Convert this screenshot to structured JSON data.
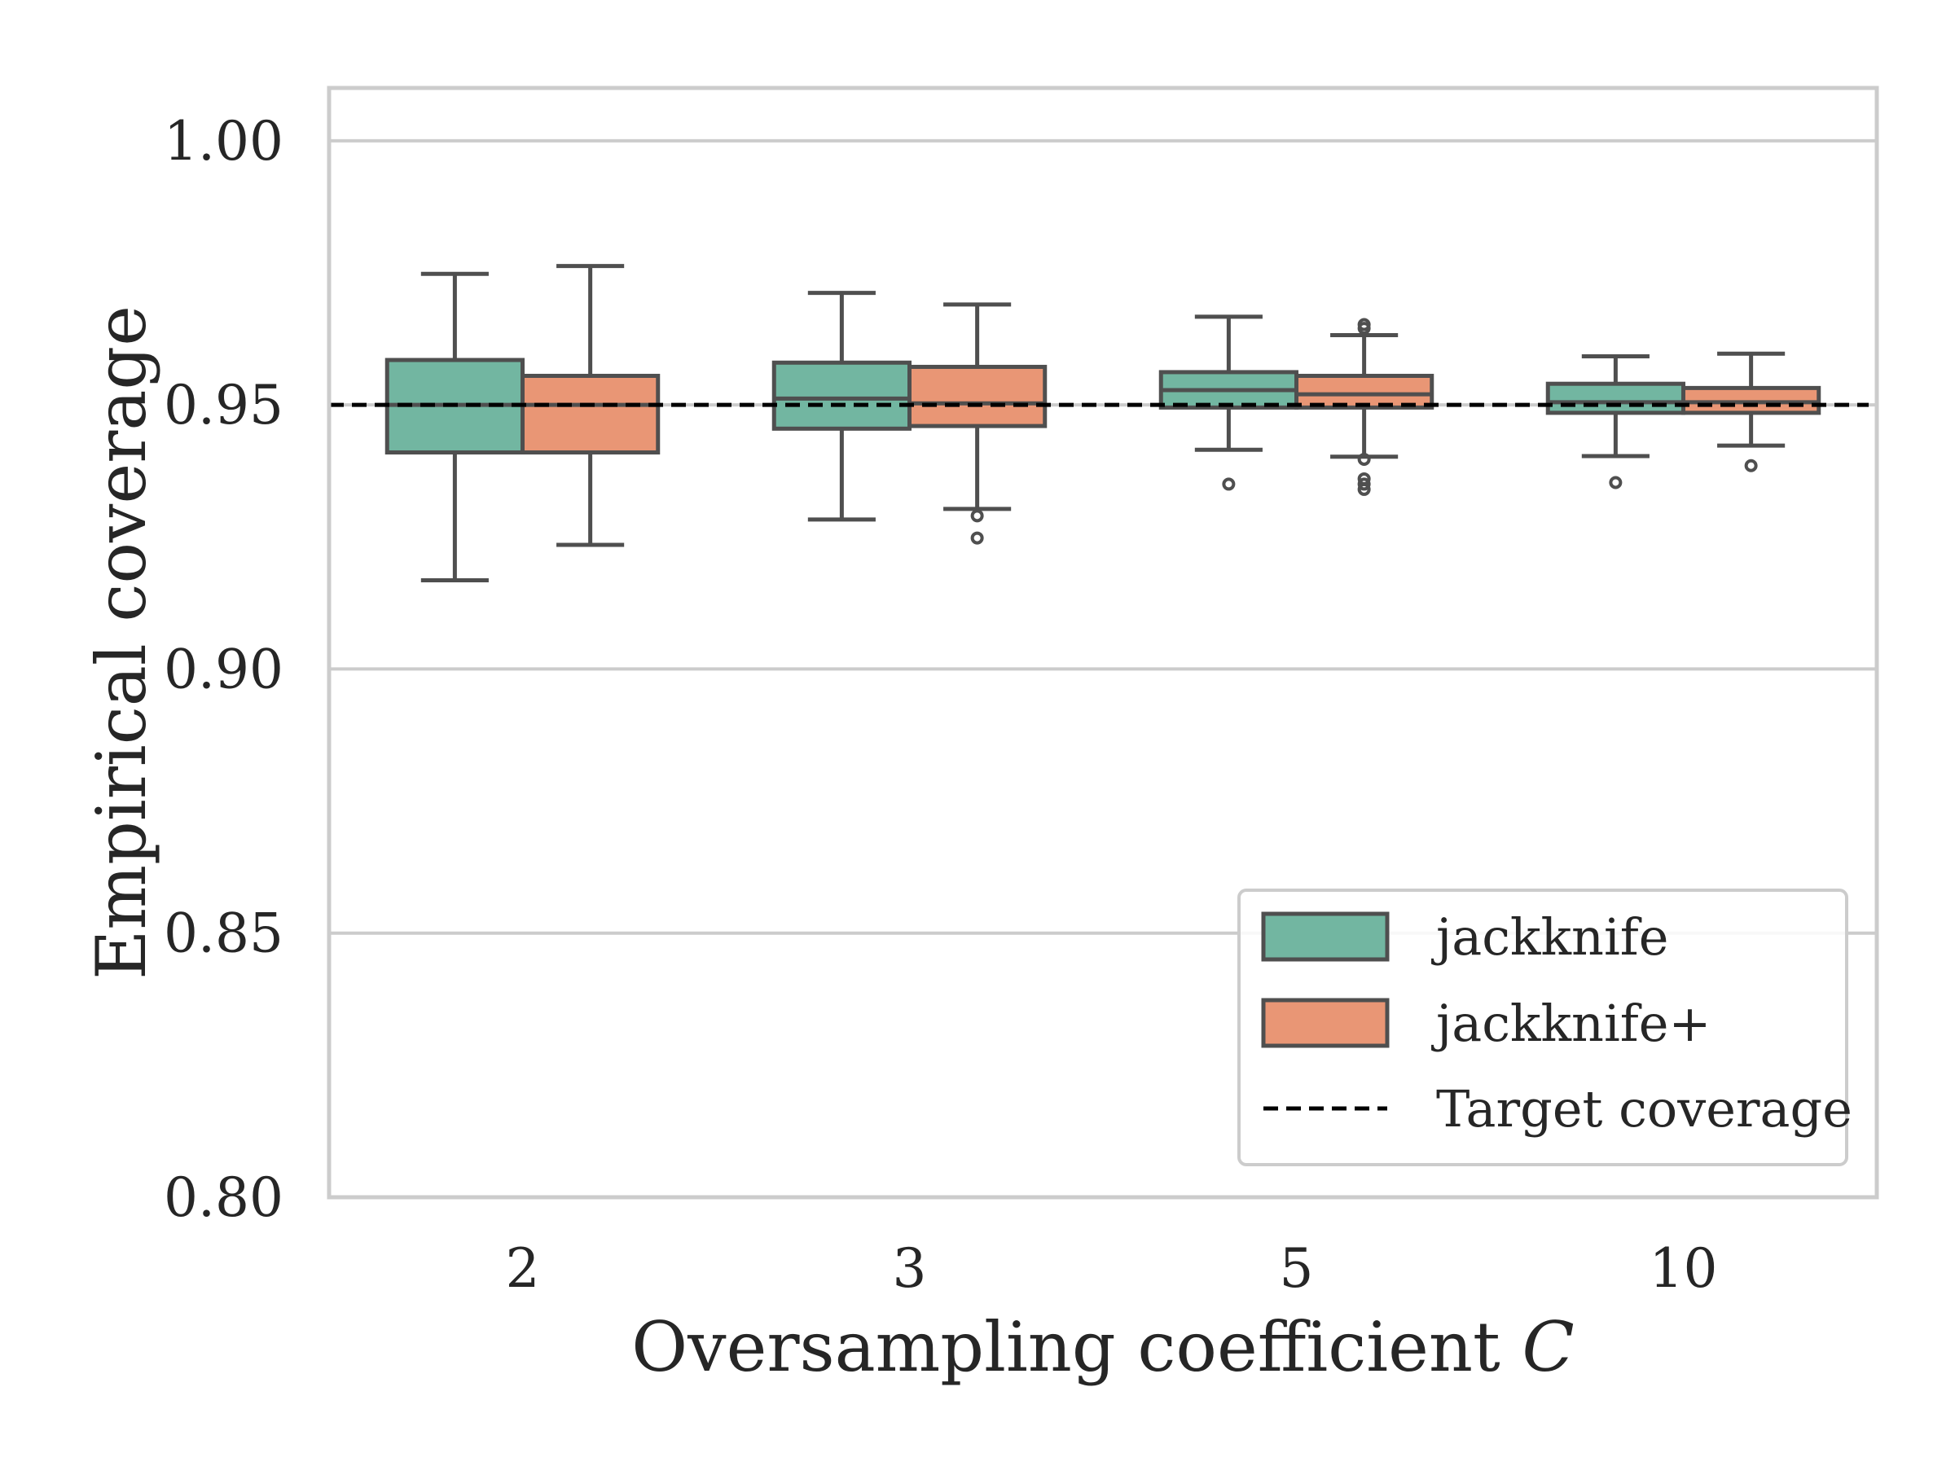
{
  "chart_data": {
    "type": "box",
    "title": "",
    "xlabel": "Oversampling coefficient",
    "xlabel_var": "C",
    "ylabel": "Empirical coverage",
    "ylim": [
      0.8,
      1.01
    ],
    "yticks": [
      0.8,
      0.85,
      0.9,
      0.95,
      1.0
    ],
    "ytick_labels": [
      "0.80",
      "0.85",
      "0.90",
      "0.95",
      "1.00"
    ],
    "categories": [
      "2",
      "3",
      "5",
      "10"
    ],
    "grid": "horizontal",
    "legend_position": "bottom-right",
    "target": {
      "name": "Target coverage",
      "value": 0.95,
      "color": "#000000"
    },
    "series": [
      {
        "name": "jackknife",
        "color": "#72b6a1",
        "boxes": [
          {
            "q1": 0.941,
            "median": 0.95,
            "q3": 0.9585,
            "whislo": 0.9168,
            "whishi": 0.9748,
            "fliers": []
          },
          {
            "q1": 0.9455,
            "median": 0.9512,
            "q3": 0.958,
            "whislo": 0.9283,
            "whishi": 0.9712,
            "fliers": []
          },
          {
            "q1": 0.9495,
            "median": 0.9528,
            "q3": 0.9562,
            "whislo": 0.9415,
            "whishi": 0.9667,
            "fliers": [
              0.935
            ]
          },
          {
            "q1": 0.9485,
            "median": 0.9505,
            "q3": 0.954,
            "whislo": 0.9403,
            "whishi": 0.9592,
            "fliers": [
              0.9353
            ]
          }
        ]
      },
      {
        "name": "jackknife+",
        "color": "#e99675",
        "boxes": [
          {
            "q1": 0.941,
            "median": 0.95,
            "q3": 0.9555,
            "whislo": 0.9235,
            "whishi": 0.9763,
            "fliers": []
          },
          {
            "q1": 0.946,
            "median": 0.9503,
            "q3": 0.9572,
            "whislo": 0.9303,
            "whishi": 0.969,
            "fliers": [
              0.929,
              0.9248
            ]
          },
          {
            "q1": 0.9495,
            "median": 0.952,
            "q3": 0.9555,
            "whislo": 0.9402,
            "whishi": 0.9632,
            "fliers": [
              0.9652,
              0.9645,
              0.9397,
              0.936,
              0.935,
              0.934
            ]
          },
          {
            "q1": 0.9485,
            "median": 0.9505,
            "q3": 0.9532,
            "whislo": 0.9423,
            "whishi": 0.9597,
            "fliers": [
              0.9385
            ]
          }
        ]
      }
    ]
  }
}
